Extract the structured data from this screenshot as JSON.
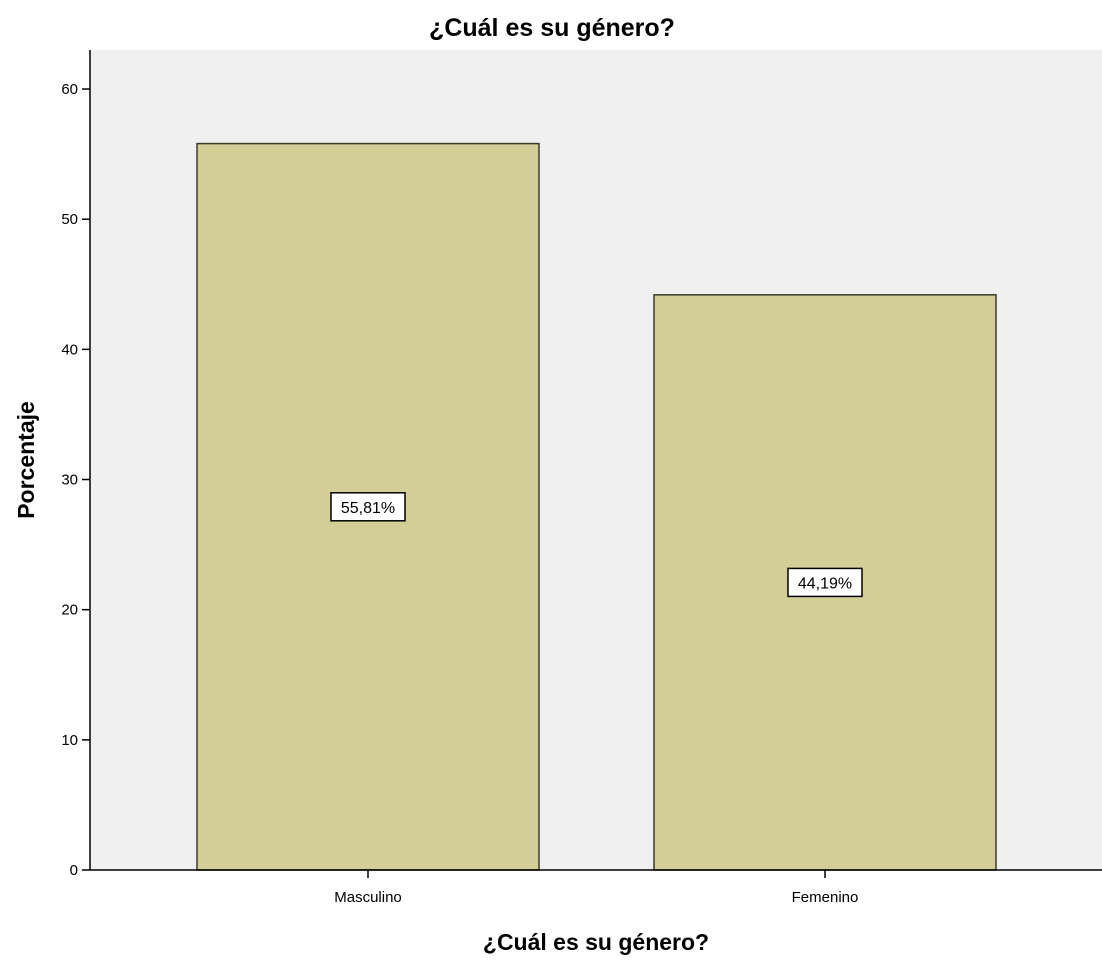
{
  "chart_data": {
    "type": "bar",
    "title": "¿Cuál es su género?",
    "xlabel": "¿Cuál es su género?",
    "ylabel": "Porcentaje",
    "categories": [
      "Masculino",
      "Femenino"
    ],
    "values": [
      55.81,
      44.19
    ],
    "data_labels": [
      "55,81%",
      "44,19%"
    ],
    "ylim": [
      0,
      63
    ],
    "yticks": [
      0,
      10,
      20,
      30,
      40,
      50,
      60
    ],
    "grid": false,
    "legend": "none",
    "colors": {
      "bar_fill": "#d3cd98",
      "bar_stroke": "#3a3a2a",
      "plot_background": "#f0f0f0",
      "axis": "#000000"
    }
  }
}
